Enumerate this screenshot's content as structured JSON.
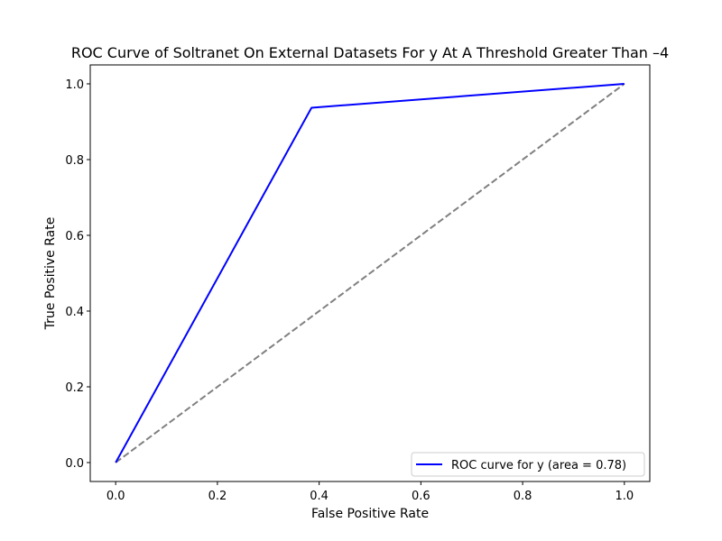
{
  "chart_data": {
    "type": "line",
    "title": "ROC Curve of Soltranet On External Datasets For y At A Threshold Greater Than –4",
    "xlabel": "False Positive Rate",
    "ylabel": "True Positive Rate",
    "xlim": [
      -0.05,
      1.05
    ],
    "ylim": [
      -0.05,
      1.05
    ],
    "xticks": [
      0.0,
      0.2,
      0.4,
      0.6,
      0.8,
      1.0
    ],
    "yticks": [
      0.0,
      0.2,
      0.4,
      0.6,
      0.8,
      1.0
    ],
    "xtick_labels": [
      "0.0",
      "0.2",
      "0.4",
      "0.6",
      "0.8",
      "1.0"
    ],
    "ytick_labels": [
      "0.0",
      "0.2",
      "0.4",
      "0.6",
      "0.8",
      "1.0"
    ],
    "grid": false,
    "legend_position": "lower right",
    "series": [
      {
        "name": "ROC curve for y (area = 0.78)",
        "x": [
          0.0,
          0.385,
          1.0
        ],
        "y": [
          0.0,
          0.937,
          1.0
        ],
        "color": "#0000ff",
        "style": "solid"
      },
      {
        "x": [
          0.0,
          1.0
        ],
        "y": [
          0.0,
          1.0
        ],
        "color": "#808080",
        "style": "dashed"
      }
    ]
  }
}
